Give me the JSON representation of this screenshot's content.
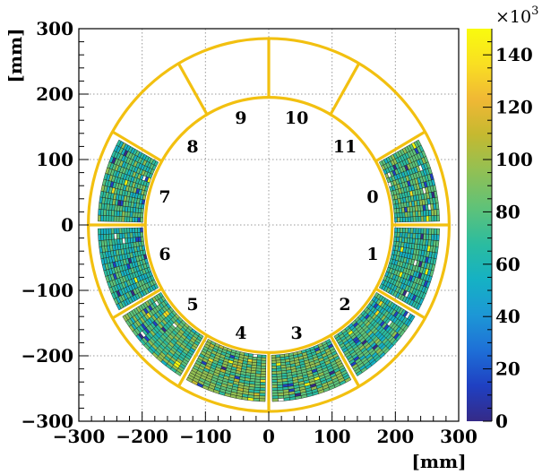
{
  "chart_data": {
    "type": "heatmap",
    "xlabel": "[mm]",
    "ylabel": "[mm]",
    "xlim": [
      -300,
      300
    ],
    "ylim": [
      -300,
      300
    ],
    "x_ticks": [
      "−300",
      "−200",
      "−100",
      "0",
      "100",
      "200",
      "300"
    ],
    "y_ticks": [
      "−300",
      "−200",
      "−100",
      "0",
      "100",
      "200",
      "300"
    ],
    "grid": true,
    "colorbar": {
      "min": 0,
      "max": 150,
      "multiplier": "×10",
      "multiplier_exp": "3",
      "ticks": [
        "0",
        "20",
        "40",
        "60",
        "80",
        "100",
        "120",
        "140"
      ]
    },
    "frame": {
      "inner_radius": 195,
      "outer_radius": 285,
      "filled_r_min": 199,
      "filled_r_max": 270,
      "sector_count": 12,
      "color": "#f2c010"
    },
    "sectors": [
      {
        "label": "0",
        "filled": true,
        "level": 75
      },
      {
        "label": "1",
        "filled": true,
        "level": 70
      },
      {
        "label": "2",
        "filled": true,
        "level": 72
      },
      {
        "label": "3",
        "filled": true,
        "level": 80
      },
      {
        "label": "4",
        "filled": true,
        "level": 85
      },
      {
        "label": "5",
        "filled": true,
        "level": 78
      },
      {
        "label": "6",
        "filled": true,
        "level": 68
      },
      {
        "label": "7",
        "filled": true,
        "level": 73
      },
      {
        "label": "8",
        "filled": false,
        "level": 0
      },
      {
        "label": "9",
        "filled": false,
        "level": 0
      },
      {
        "label": "10",
        "filled": false,
        "level": 0
      },
      {
        "label": "11",
        "filled": false,
        "level": 0
      }
    ],
    "palette": [
      "#352a87",
      "#1f40c2",
      "#1e6fd7",
      "#1d97d6",
      "#15b1c4",
      "#2bbca0",
      "#5dc27a",
      "#93c053",
      "#c5b930",
      "#f0b835",
      "#f9df22",
      "#f9fb0e"
    ]
  }
}
